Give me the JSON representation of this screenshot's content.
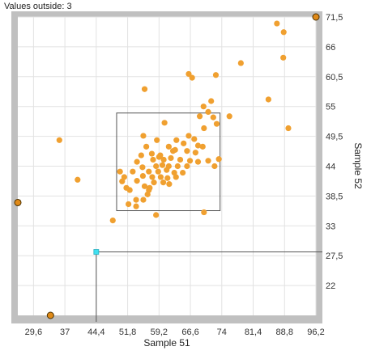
{
  "status": {
    "label": "Values outside:",
    "count": "3"
  },
  "chart_data": {
    "type": "scatter",
    "title": "",
    "xlabel": "Sample 51",
    "ylabel": "Sample 52",
    "xlim": [
      25.9,
      96.2
    ],
    "ylim": [
      16.5,
      71.5
    ],
    "x_ticks": [
      "29,6",
      "37",
      "44,4",
      "51,8",
      "59,2",
      "66,6",
      "74",
      "81,4",
      "88,8",
      "96,2"
    ],
    "x_tick_values": [
      29.6,
      37,
      44.4,
      51.8,
      59.2,
      66.6,
      74,
      81.4,
      88.8,
      96.2
    ],
    "y_ticks": [
      "71,5",
      "66",
      "60,5",
      "55",
      "49,5",
      "44",
      "38,5",
      "33",
      "27,5",
      "22"
    ],
    "y_tick_values": [
      71.5,
      66,
      60.5,
      55,
      49.5,
      44,
      38.5,
      33,
      27.5,
      22
    ],
    "grid": true,
    "point_color": "#f0a030",
    "outlier_color": "#e08a18",
    "frame_color": "#c0c0c0",
    "cursor_color": "#40e0f0",
    "selection_box": {
      "x_min": 49.2,
      "x_max": 73.6,
      "y_min": 35.8,
      "y_max": 53.8
    },
    "cursor": {
      "x": 44.4,
      "y": 28.2
    },
    "outside_points": [
      {
        "x": 96.2,
        "y": 71.5
      },
      {
        "x": 25.9,
        "y": 37.3
      },
      {
        "x": 33.6,
        "y": 16.5
      }
    ],
    "points": [
      {
        "x": 87.0,
        "y": 70.3
      },
      {
        "x": 88.6,
        "y": 68.7
      },
      {
        "x": 88.5,
        "y": 64.0
      },
      {
        "x": 78.5,
        "y": 63.0
      },
      {
        "x": 66.2,
        "y": 61.0
      },
      {
        "x": 67.0,
        "y": 60.3
      },
      {
        "x": 72.6,
        "y": 60.8
      },
      {
        "x": 55.8,
        "y": 58.2
      },
      {
        "x": 85.0,
        "y": 56.3
      },
      {
        "x": 71.5,
        "y": 56.0
      },
      {
        "x": 69.7,
        "y": 55.0
      },
      {
        "x": 70.8,
        "y": 54.0
      },
      {
        "x": 68.8,
        "y": 53.2
      },
      {
        "x": 72.0,
        "y": 53.0
      },
      {
        "x": 75.8,
        "y": 53.2
      },
      {
        "x": 89.7,
        "y": 51.0
      },
      {
        "x": 72.8,
        "y": 51.8
      },
      {
        "x": 69.8,
        "y": 51.0
      },
      {
        "x": 60.5,
        "y": 52.0
      },
      {
        "x": 66.2,
        "y": 49.6
      },
      {
        "x": 55.5,
        "y": 49.6
      },
      {
        "x": 67.5,
        "y": 49.0
      },
      {
        "x": 63.3,
        "y": 48.8
      },
      {
        "x": 58.7,
        "y": 48.8
      },
      {
        "x": 65.0,
        "y": 48.2
      },
      {
        "x": 68.4,
        "y": 47.8
      },
      {
        "x": 56.2,
        "y": 47.6
      },
      {
        "x": 61.5,
        "y": 47.6
      },
      {
        "x": 63.0,
        "y": 47.0
      },
      {
        "x": 69.5,
        "y": 47.6
      },
      {
        "x": 55.0,
        "y": 46.0
      },
      {
        "x": 57.5,
        "y": 46.3
      },
      {
        "x": 59.5,
        "y": 46.0
      },
      {
        "x": 62.5,
        "y": 46.8
      },
      {
        "x": 65.8,
        "y": 46.8
      },
      {
        "x": 67.8,
        "y": 46.5
      },
      {
        "x": 35.7,
        "y": 48.8
      },
      {
        "x": 73.3,
        "y": 45.3
      },
      {
        "x": 70.8,
        "y": 45.0
      },
      {
        "x": 54.0,
        "y": 44.8
      },
      {
        "x": 57.8,
        "y": 45.2
      },
      {
        "x": 59.2,
        "y": 45.7
      },
      {
        "x": 60.3,
        "y": 45.2
      },
      {
        "x": 62.0,
        "y": 45.5
      },
      {
        "x": 64.2,
        "y": 45.2
      },
      {
        "x": 66.5,
        "y": 45.0
      },
      {
        "x": 68.4,
        "y": 44.8
      },
      {
        "x": 55.3,
        "y": 43.8
      },
      {
        "x": 58.5,
        "y": 44.0
      },
      {
        "x": 60.0,
        "y": 44.2
      },
      {
        "x": 61.5,
        "y": 44.0
      },
      {
        "x": 63.6,
        "y": 44.0
      },
      {
        "x": 65.8,
        "y": 44.0
      },
      {
        "x": 72.3,
        "y": 44.0
      },
      {
        "x": 50.0,
        "y": 43.0
      },
      {
        "x": 53.0,
        "y": 43.0
      },
      {
        "x": 56.8,
        "y": 43.0
      },
      {
        "x": 59.0,
        "y": 43.0
      },
      {
        "x": 61.0,
        "y": 43.3
      },
      {
        "x": 62.8,
        "y": 42.8
      },
      {
        "x": 64.8,
        "y": 42.8
      },
      {
        "x": 51.0,
        "y": 42.0
      },
      {
        "x": 55.4,
        "y": 42.2
      },
      {
        "x": 57.6,
        "y": 42.0
      },
      {
        "x": 59.6,
        "y": 42.0
      },
      {
        "x": 61.2,
        "y": 41.8
      },
      {
        "x": 63.2,
        "y": 42.0
      },
      {
        "x": 50.5,
        "y": 41.2
      },
      {
        "x": 54.0,
        "y": 41.3
      },
      {
        "x": 58.0,
        "y": 41.0
      },
      {
        "x": 60.2,
        "y": 41.0
      },
      {
        "x": 61.6,
        "y": 40.7
      },
      {
        "x": 40.0,
        "y": 41.5
      },
      {
        "x": 51.5,
        "y": 40.0
      },
      {
        "x": 55.8,
        "y": 40.3
      },
      {
        "x": 57.0,
        "y": 40.0
      },
      {
        "x": 52.3,
        "y": 39.6
      },
      {
        "x": 56.8,
        "y": 39.6
      },
      {
        "x": 56.5,
        "y": 38.8
      },
      {
        "x": 55.5,
        "y": 37.8
      },
      {
        "x": 53.8,
        "y": 37.8
      },
      {
        "x": 52.0,
        "y": 37.0
      },
      {
        "x": 53.8,
        "y": 36.6
      },
      {
        "x": 69.8,
        "y": 35.5
      },
      {
        "x": 58.5,
        "y": 35.0
      },
      {
        "x": 48.3,
        "y": 34.0
      }
    ]
  }
}
